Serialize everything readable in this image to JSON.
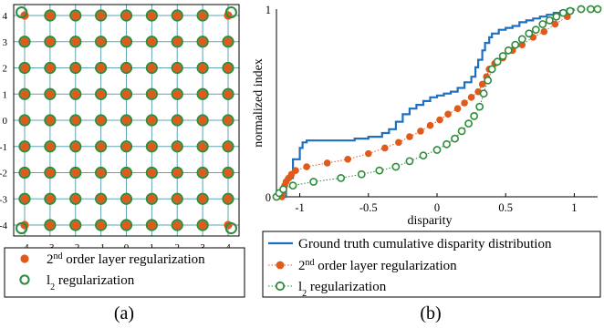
{
  "captions": {
    "a": "(a)",
    "b": "(b)"
  },
  "colors": {
    "orange": "#e05a1c",
    "green": "#2e8b3a",
    "blue": "#1f6fc0",
    "grid": "#5fa3b5"
  },
  "chart_data": [
    {
      "id": "a",
      "type": "scatter",
      "xlim": [
        -4,
        4
      ],
      "ylim": [
        -4,
        4
      ],
      "xticks": [
        "-4",
        "-3",
        "-2",
        "-1",
        "0",
        "1",
        "2",
        "3",
        "4"
      ],
      "yticks": [
        "-4",
        "-3",
        "-2",
        "-1",
        "0",
        "1",
        "2",
        "3",
        "4"
      ],
      "grid": true,
      "grid_values": [
        -4,
        -3,
        -2,
        -1,
        0,
        1,
        2,
        3,
        4
      ],
      "legend": {
        "placement": "below",
        "entries": [
          {
            "series": "orange",
            "parts": [
              {
                "t": "2",
                "v": ""
              },
              {
                "t": "nd",
                "v": "super"
              },
              {
                "t": " order layer regularization",
                "v": ""
              }
            ]
          },
          {
            "series": "green",
            "parts": [
              {
                "t": "l",
                "v": ""
              },
              {
                "t": "2",
                "v": "sub"
              },
              {
                "t": " regularization",
                "v": ""
              }
            ]
          }
        ]
      },
      "series": [
        {
          "key": "orange",
          "marker": "filled-circle",
          "description": "9x9 grid of points at integer coordinates -4..4"
        },
        {
          "key": "green",
          "marker": "open-circle",
          "description": "9x9 grid, corners displaced outward",
          "corner_offsets": {
            "-4,4": [
              -0.12,
              0.12
            ],
            "4,4": [
              0.12,
              0.12
            ],
            "-4,-4": [
              -0.12,
              -0.12
            ],
            "4,-4": [
              0.12,
              -0.12
            ]
          }
        }
      ]
    },
    {
      "id": "b",
      "type": "line",
      "xlabel": "disparity",
      "ylabel": "normalized index",
      "xlim": [
        -1.17,
        1.17
      ],
      "ylim": [
        0,
        1
      ],
      "xticks": [
        {
          "v": -1,
          "label": "-1"
        },
        {
          "v": -0.5,
          "label": "-0.5"
        },
        {
          "v": 0,
          "label": "0"
        },
        {
          "v": 0.5,
          "label": "0.5"
        },
        {
          "v": 1,
          "label": "1"
        }
      ],
      "yticks": [
        {
          "v": 0,
          "label": "0"
        },
        {
          "v": 1,
          "label": "1"
        }
      ],
      "grid": false,
      "legend": {
        "placement": "below",
        "entries": [
          {
            "series": "gt",
            "parts": [
              {
                "t": "Ground truth cumulative disparity distribution",
                "v": ""
              }
            ]
          },
          {
            "series": "orange",
            "parts": [
              {
                "t": "2",
                "v": ""
              },
              {
                "t": "nd",
                "v": "super"
              },
              {
                "t": " order layer regularization",
                "v": ""
              }
            ]
          },
          {
            "series": "green",
            "parts": [
              {
                "t": "l",
                "v": ""
              },
              {
                "t": "2",
                "v": "sub"
              },
              {
                "t": " regularization",
                "v": ""
              }
            ]
          }
        ]
      },
      "series": [
        {
          "key": "gt",
          "style": "step",
          "x": [
            -1.13,
            -1.1,
            -1.05,
            -1.0,
            -0.98,
            -0.95,
            -0.9,
            -0.8,
            -0.7,
            -0.6,
            -0.5,
            -0.4,
            -0.35,
            -0.3,
            -0.25,
            -0.2,
            -0.15,
            -0.1,
            -0.05,
            0.0,
            0.05,
            0.1,
            0.15,
            0.2,
            0.25,
            0.28,
            0.3,
            0.33,
            0.35,
            0.38,
            0.4,
            0.45,
            0.5,
            0.55,
            0.6,
            0.65,
            0.7,
            0.75,
            0.8,
            0.85,
            0.9,
            0.95,
            1.0
          ],
          "y": [
            0.0,
            0.1,
            0.2,
            0.26,
            0.29,
            0.3,
            0.3,
            0.3,
            0.3,
            0.31,
            0.32,
            0.34,
            0.36,
            0.4,
            0.44,
            0.47,
            0.49,
            0.51,
            0.53,
            0.54,
            0.55,
            0.56,
            0.58,
            0.61,
            0.64,
            0.69,
            0.73,
            0.78,
            0.82,
            0.85,
            0.87,
            0.89,
            0.9,
            0.91,
            0.93,
            0.94,
            0.95,
            0.96,
            0.97,
            0.98,
            0.99,
            1.0,
            1.0
          ]
        },
        {
          "key": "orange",
          "style": "dotted-marker",
          "x": [
            -1.13,
            -1.12,
            -1.11,
            -1.1,
            -1.08,
            -1.06,
            -1.03,
            -0.95,
            -0.8,
            -0.65,
            -0.5,
            -0.38,
            -0.28,
            -0.2,
            -0.12,
            -0.05,
            0.02,
            0.08,
            0.15,
            0.2,
            0.25,
            0.3,
            0.33,
            0.36,
            0.38,
            0.42,
            0.48,
            0.55,
            0.62,
            0.7,
            0.78,
            0.86,
            0.95
          ],
          "y": [
            0.0,
            0.03,
            0.06,
            0.08,
            0.1,
            0.12,
            0.14,
            0.16,
            0.18,
            0.2,
            0.23,
            0.26,
            0.29,
            0.32,
            0.35,
            0.38,
            0.41,
            0.44,
            0.47,
            0.5,
            0.53,
            0.56,
            0.6,
            0.64,
            0.68,
            0.71,
            0.74,
            0.78,
            0.81,
            0.85,
            0.88,
            0.92,
            0.96
          ]
        },
        {
          "key": "green",
          "style": "dotted-marker",
          "x": [
            -1.17,
            -1.15,
            -1.12,
            -1.05,
            -0.9,
            -0.7,
            -0.55,
            -0.42,
            -0.3,
            -0.2,
            -0.1,
            0.0,
            0.07,
            0.13,
            0.18,
            0.23,
            0.27,
            0.31,
            0.34,
            0.37,
            0.4,
            0.44,
            0.48,
            0.52,
            0.57,
            0.62,
            0.67,
            0.72,
            0.77,
            0.82,
            0.87,
            0.92,
            0.97,
            1.05,
            1.12,
            1.17
          ],
          "y": [
            0.0,
            0.02,
            0.04,
            0.06,
            0.08,
            0.1,
            0.12,
            0.14,
            0.16,
            0.19,
            0.22,
            0.25,
            0.28,
            0.31,
            0.35,
            0.39,
            0.43,
            0.48,
            0.55,
            0.62,
            0.68,
            0.72,
            0.75,
            0.78,
            0.81,
            0.84,
            0.87,
            0.89,
            0.92,
            0.94,
            0.96,
            0.98,
            0.99,
            1.0,
            1.0,
            1.0
          ]
        }
      ]
    }
  ]
}
